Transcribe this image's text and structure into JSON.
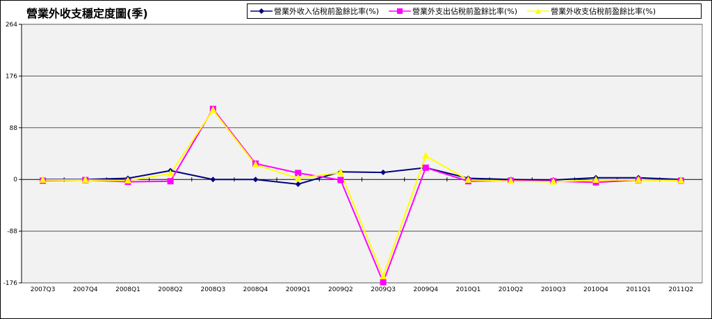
{
  "chart_data": {
    "type": "line",
    "title": "營業外收支穩定度圖(季)",
    "xlabel": "",
    "ylabel": "",
    "ylim": [
      -176,
      264
    ],
    "yticks": [
      264,
      176,
      88,
      0,
      -88,
      -176
    ],
    "categories": [
      "2007Q3",
      "2007Q4",
      "2008Q1",
      "2008Q2",
      "2008Q3",
      "2008Q4",
      "2009Q1",
      "2009Q2",
      "2009Q3",
      "2009Q4",
      "2010Q1",
      "2010Q2",
      "2010Q3",
      "2010Q4",
      "2011Q1",
      "2011Q2"
    ],
    "legend": "top-right",
    "grid": true,
    "series": [
      {
        "name": "營業外收入佔稅前盈餘比率(%)",
        "color": "#000080",
        "marker": "diamond",
        "values": [
          0,
          0,
          2,
          15,
          0,
          0,
          -8,
          13,
          12,
          20,
          2,
          0,
          -1,
          3,
          3,
          0
        ]
      },
      {
        "name": "營業外支出佔稅前盈餘比率(%)",
        "color": "#FF00FF",
        "marker": "square",
        "values": [
          -2,
          -1,
          -4,
          -3,
          120,
          27,
          11,
          -1,
          -175,
          20,
          -3,
          -2,
          -3,
          -5,
          -1,
          -2
        ]
      },
      {
        "name": "營業外收支佔稅前盈餘比率(%)",
        "color": "#FFFF00",
        "marker": "triangle",
        "values": [
          -1,
          -1,
          -2,
          10,
          118,
          25,
          2,
          12,
          -165,
          40,
          -1,
          -3,
          -4,
          -1,
          -1,
          -2
        ]
      }
    ]
  }
}
